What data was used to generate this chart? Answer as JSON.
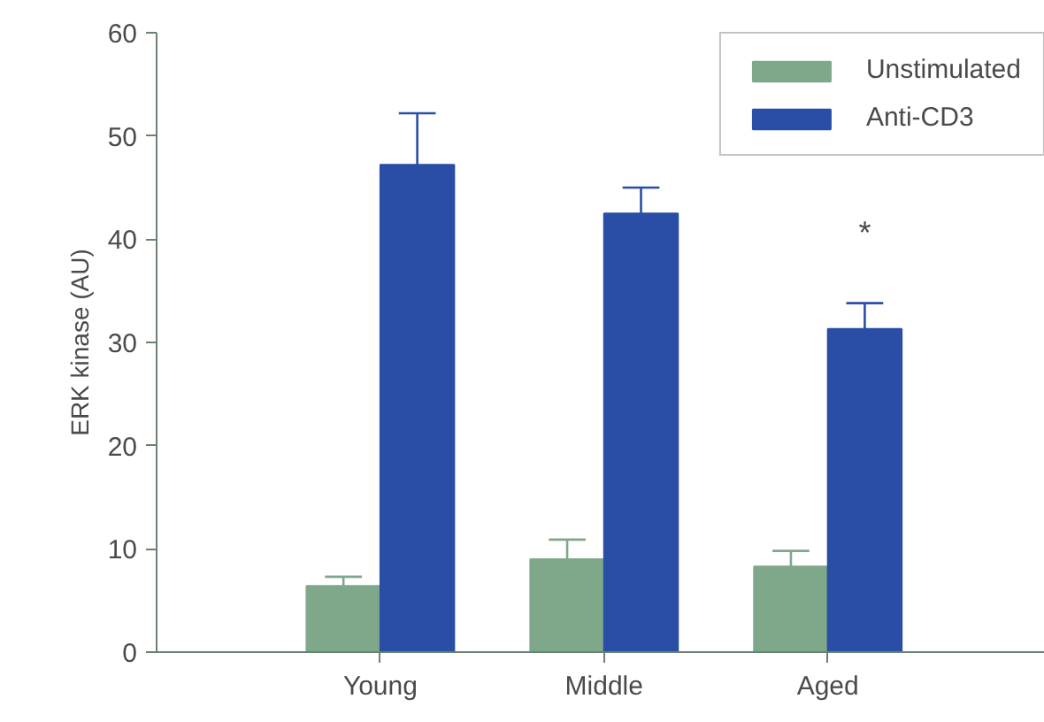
{
  "chart_data": {
    "type": "bar",
    "ylabel": "ERK kinase (AU)",
    "categories": [
      "Young",
      "Middle",
      "Aged"
    ],
    "series": [
      {
        "name": "Unstimulated",
        "color": "#7fa88a",
        "values": [
          6.4,
          9.0,
          8.3
        ],
        "errors": [
          [
            6.4,
            7.3
          ],
          [
            9.0,
            10.9
          ],
          [
            8.3,
            9.8
          ]
        ]
      },
      {
        "name": "Anti-CD3",
        "color": "#2a4ea6",
        "values": [
          47.2,
          42.5,
          31.3
        ],
        "errors": [
          [
            47.2,
            52.2
          ],
          [
            42.5,
            45.0
          ],
          [
            31.3,
            33.8
          ]
        ]
      }
    ],
    "ylim": [
      0,
      60
    ],
    "yticks": [
      0,
      10,
      20,
      30,
      40,
      50,
      60
    ],
    "annotations": [
      "*"
    ],
    "legend": "top right",
    "grid": false
  }
}
